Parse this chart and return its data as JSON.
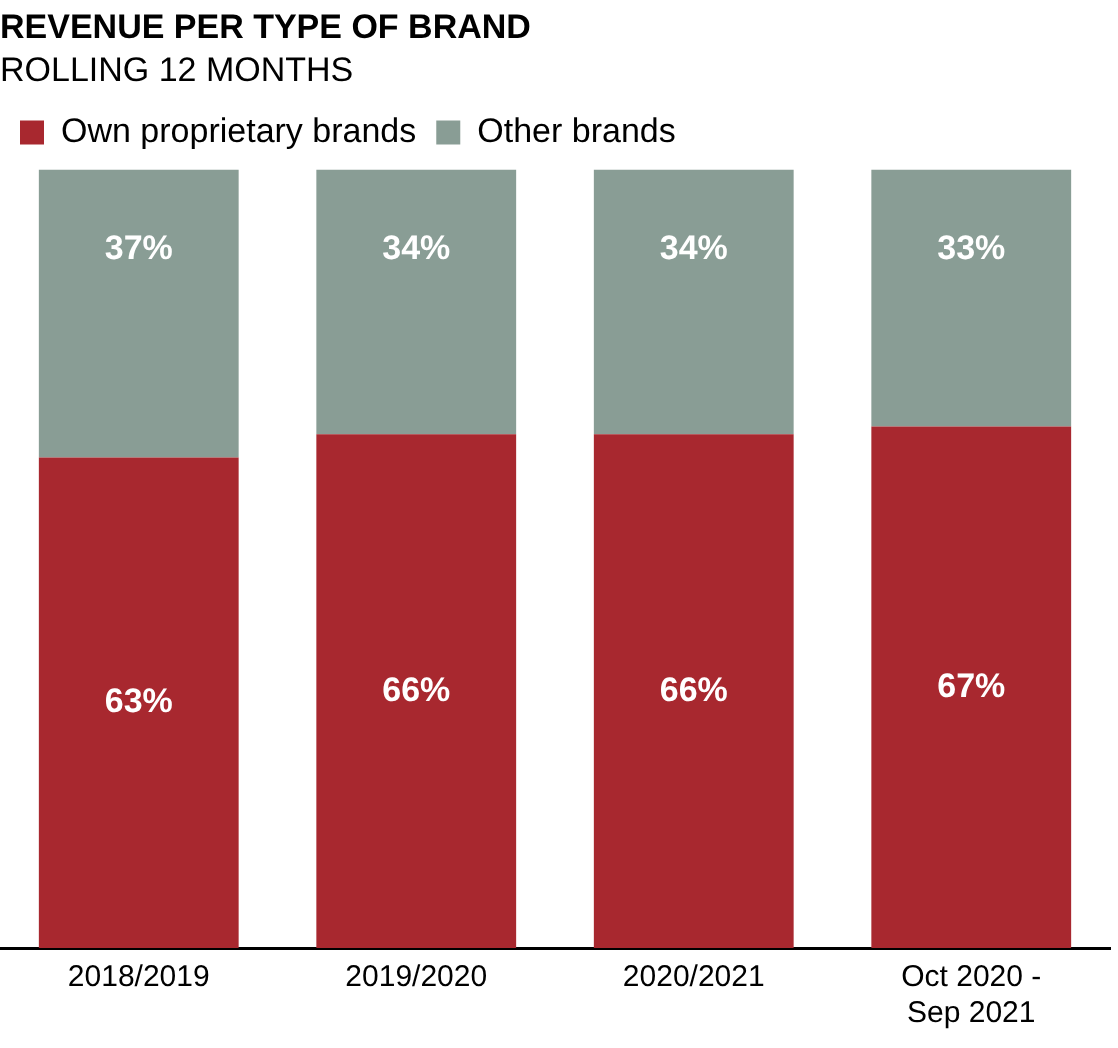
{
  "chart_data": {
    "type": "bar",
    "title": "REVENUE PER TYPE OF BRAND",
    "subtitle": "ROLLING 12 MONTHS",
    "categories": [
      "2018/2019",
      "2019/2020",
      "2020/2021",
      "Oct 2020 - Sep 2021"
    ],
    "stacked": true,
    "legend": "top left",
    "grid": false,
    "series": [
      {
        "name": "Own proprietary brands",
        "color": "#a8282f",
        "values": [
          63,
          66,
          66,
          67
        ],
        "value_labels": [
          "63%",
          "66%",
          "66%",
          "67%"
        ]
      },
      {
        "name": "Other brands",
        "color": "#899d95",
        "values": [
          37,
          34,
          34,
          33
        ],
        "value_labels": [
          "37%",
          "34%",
          "34%",
          "33%"
        ]
      }
    ]
  }
}
